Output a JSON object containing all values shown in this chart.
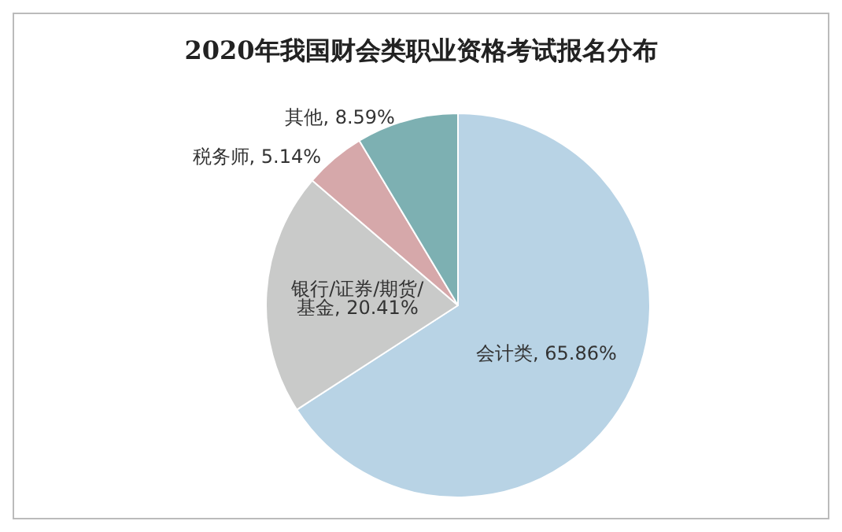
{
  "chart_data": {
    "type": "pie",
    "title": "2020年我国财会类职业资格考试报名分布",
    "categories": [
      "会计类",
      "银行/证券/期货/基金",
      "税务师",
      "其他"
    ],
    "values": [
      65.86,
      20.41,
      5.14,
      8.59
    ],
    "colors": [
      "#b8d3e5",
      "#c9cac9",
      "#d6a8aa",
      "#7db0b2"
    ],
    "value_labels": [
      ", 65.86%",
      ", 20.41%",
      ", 5.14%",
      ", 8.59%"
    ],
    "legend": false
  }
}
